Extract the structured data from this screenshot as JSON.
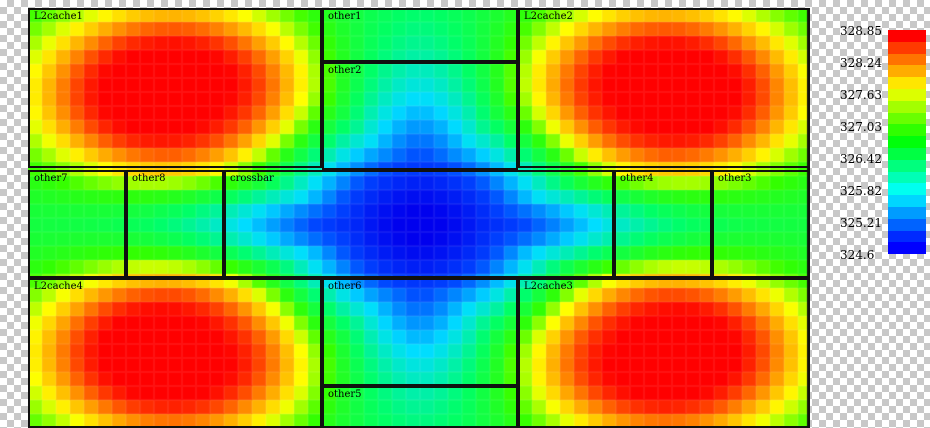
{
  "blocks": [
    {
      "id": "L2cache1",
      "label": "L2cache1",
      "temp": 328.85
    },
    {
      "id": "other1",
      "label": "other1",
      "temp": 327.0
    },
    {
      "id": "L2cache2",
      "label": "L2cache2",
      "temp": 328.85
    },
    {
      "id": "other2",
      "label": "other2",
      "temp": 326.2
    },
    {
      "id": "other7",
      "label": "other7",
      "temp": 326.9
    },
    {
      "id": "other8",
      "label": "other8",
      "temp": 326.0
    },
    {
      "id": "crossbar",
      "label": "crossbar",
      "temp": 325.0
    },
    {
      "id": "other4",
      "label": "other4",
      "temp": 326.0
    },
    {
      "id": "other3",
      "label": "other3",
      "temp": 326.9
    },
    {
      "id": "L2cache4",
      "label": "L2cache4",
      "temp": 328.85
    },
    {
      "id": "other6",
      "label": "other6",
      "temp": 326.2
    },
    {
      "id": "L2cache3",
      "label": "L2cache3",
      "temp": 328.85
    },
    {
      "id": "other5",
      "label": "other5",
      "temp": 327.0
    }
  ],
  "legend": {
    "ticks": [
      "328.85",
      "328.24",
      "327.63",
      "327.03",
      "326.42",
      "325.82",
      "325.21",
      "324.6"
    ],
    "colors": [
      "#ff0000",
      "#ff3a00",
      "#ff7300",
      "#ffac00",
      "#ffe600",
      "#dcff00",
      "#a3ff00",
      "#69ff00",
      "#30ff00",
      "#00ff0a",
      "#00ff43",
      "#00ff7d",
      "#00ffb6",
      "#00fff0",
      "#00d6ff",
      "#009cff",
      "#0063ff",
      "#002aff",
      "#0000ff"
    ]
  },
  "colormap": {
    "min": 324.6,
    "max": 328.85,
    "stops": [
      "#0000ee",
      "#0044ff",
      "#00ddff",
      "#00ff66",
      "#33ff00",
      "#ffff00",
      "#ff8800",
      "#ff0000"
    ]
  }
}
